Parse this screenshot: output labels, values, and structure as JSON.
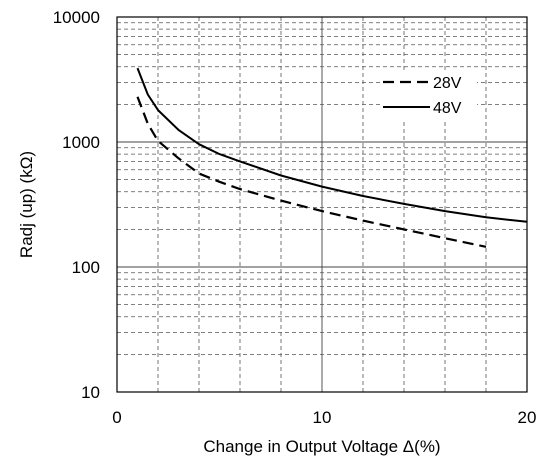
{
  "chart_data": {
    "type": "line",
    "xlabel": "Change in Output Voltage Δ(%)",
    "ylabel": "Radj (up) (kΩ)",
    "xlim": [
      0,
      20
    ],
    "ylim": [
      10,
      10000
    ],
    "y_scale": "log",
    "grid": "dashed",
    "legend_position": "top-right",
    "x_ticks": [
      "0",
      "10",
      "20"
    ],
    "y_ticks": [
      "10",
      "100",
      "1000",
      "10000"
    ],
    "series": [
      {
        "name": "28V",
        "style": "dashed",
        "x": [
          1,
          1.5,
          2,
          3,
          4,
          5,
          6,
          8,
          10,
          12,
          14,
          16,
          18
        ],
        "y": [
          2300,
          1400,
          1020,
          740,
          560,
          480,
          420,
          340,
          280,
          235,
          200,
          170,
          145
        ]
      },
      {
        "name": "48V",
        "style": "solid",
        "x": [
          1,
          1.5,
          2,
          3,
          4,
          5,
          6,
          8,
          10,
          12,
          14,
          16,
          18,
          20
        ],
        "y": [
          3900,
          2400,
          1800,
          1250,
          960,
          800,
          700,
          540,
          440,
          370,
          320,
          280,
          250,
          230
        ]
      }
    ]
  }
}
